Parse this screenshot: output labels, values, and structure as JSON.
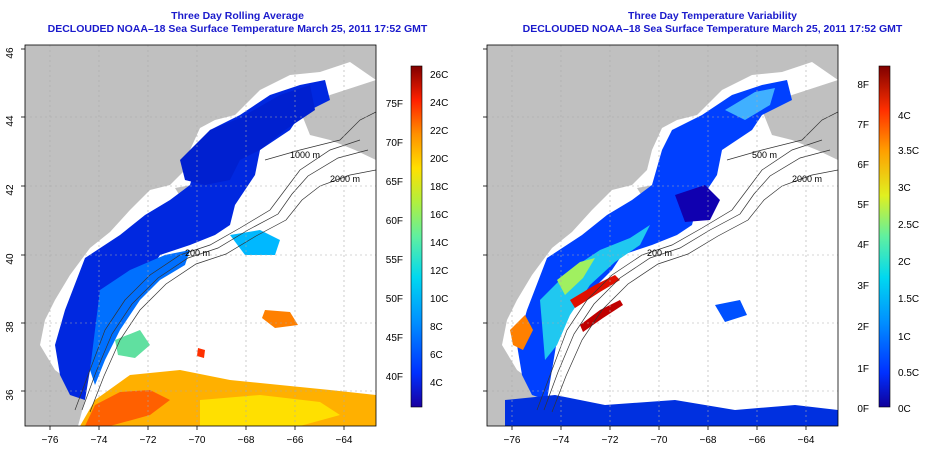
{
  "left_panel": {
    "title": "Three Day Rolling Average",
    "subtitle": "DECLOUDED NOAA–18 Sea Surface Temperature March 25, 2011 17:52 GMT",
    "colorbar_celsius": [
      "4C",
      "6C",
      "8C",
      "10C",
      "12C",
      "14C",
      "16C",
      "18C",
      "20C",
      "22C",
      "24C",
      "26C"
    ],
    "colorbar_fahrenheit": [
      "40F",
      "45F",
      "50F",
      "55F",
      "60F",
      "65F",
      "70F",
      "75F"
    ],
    "colors": [
      "#1a00a0",
      "#0030ff",
      "#0080ff",
      "#00c0ff",
      "#20e8c0",
      "#80f080",
      "#d0f040",
      "#ffd000",
      "#ff9000",
      "#ff4000",
      "#d00000",
      "#800000"
    ]
  },
  "right_panel": {
    "title": "Three Day Temperature Variability",
    "subtitle": "DECLOUDED NOAA–18 Sea Surface Temperature March 25, 2011 17:52 GMT",
    "colorbar_celsius": [
      "0C",
      "0.5C",
      "1C",
      "1.5C",
      "2C",
      "2.5C",
      "3C",
      "3.5C",
      "4C"
    ],
    "colorbar_fahrenheit": [
      "0F",
      "1F",
      "2F",
      "3F",
      "4F",
      "5F",
      "6F",
      "7F",
      "8F"
    ],
    "colors": [
      "#10009a",
      "#0030ff",
      "#0080ff",
      "#00c0ff",
      "#20e8c0",
      "#80f080",
      "#e0f020",
      "#ffa000",
      "#ff4000",
      "#c00000",
      "#800000"
    ]
  },
  "map": {
    "lat_labels": [
      "36",
      "38",
      "40",
      "42",
      "44",
      "46"
    ],
    "lon_labels": [
      "−76",
      "−74",
      "−72",
      "−70",
      "−68",
      "−66",
      "−64"
    ],
    "contour_labels": [
      "200 m",
      "200 m",
      "1000 m",
      "2000 m",
      "500 m"
    ],
    "land_color": "#c0c0c0",
    "ocean_color": "#ffffff"
  }
}
